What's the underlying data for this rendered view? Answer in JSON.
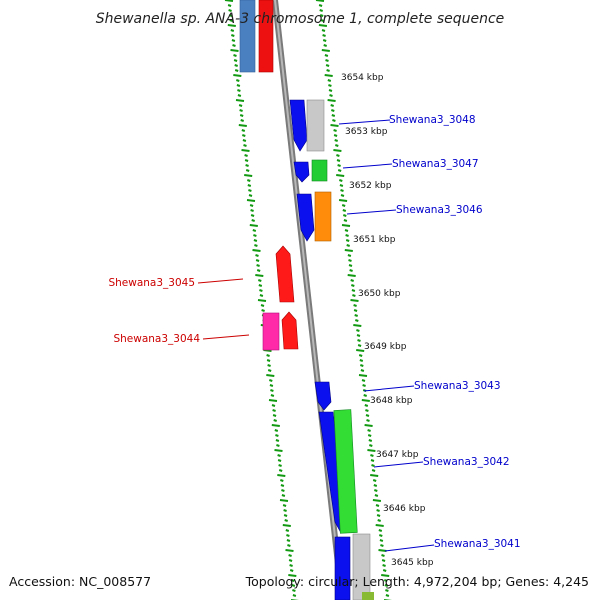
{
  "title": "Shewanella sp. ANA-3 chromosome 1, complete sequence",
  "footer": {
    "accession": "Accession: NC_008577",
    "summary": "Topology: circular; Length: 4,972,204 bp; Genes: 4,245"
  },
  "colors": {
    "backbone": "#8a8a8a",
    "ticks": "#119911",
    "forward_label": "#0000cc",
    "reverse_label": "#cc0000"
  },
  "kbp_labels": [
    "3654 kbp",
    "3653 kbp",
    "3652 kbp",
    "3651 kbp",
    "3650 kbp",
    "3649 kbp",
    "3648 kbp",
    "3647 kbp",
    "3646 kbp",
    "3645 kbp"
  ],
  "gene_labels": {
    "forward": [
      "Shewana3_3048",
      "Shewana3_3047",
      "Shewana3_3046",
      "Shewana3_3043",
      "Shewana3_3042",
      "Shewana3_3041"
    ],
    "reverse": [
      "Shewana3_3045",
      "Shewana3_3044"
    ]
  }
}
